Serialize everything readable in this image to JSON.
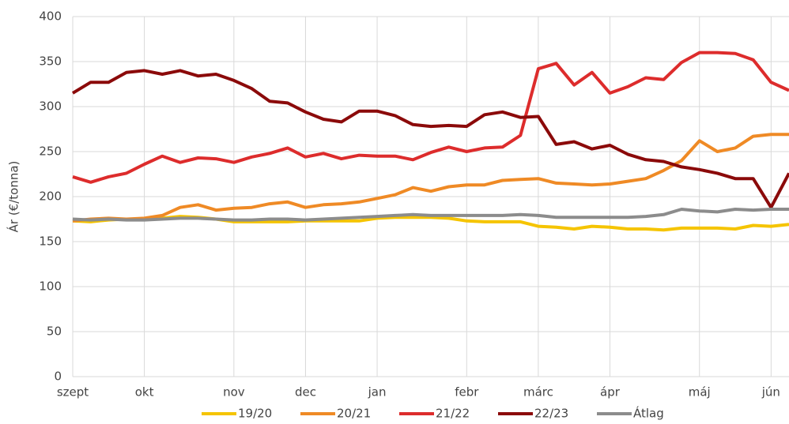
{
  "chart_data": {
    "type": "line",
    "y_label": "Ár (€/tonna)",
    "categories": [
      "szept",
      null,
      null,
      null,
      "okt",
      null,
      null,
      null,
      null,
      "nov",
      null,
      null,
      null,
      "dec",
      null,
      null,
      null,
      "jan",
      null,
      null,
      null,
      null,
      "febr",
      null,
      null,
      null,
      "márc",
      null,
      null,
      null,
      "ápr",
      null,
      null,
      null,
      null,
      "máj",
      null,
      null,
      null,
      "jún",
      null
    ],
    "series": [
      {
        "name": "19/20",
        "color": "#f5c400",
        "values": [
          173,
          172,
          174,
          175,
          175,
          176,
          178,
          177,
          175,
          172,
          172,
          172,
          172,
          173,
          173,
          173,
          173,
          176,
          177,
          177,
          177,
          176,
          173,
          172,
          172,
          172,
          167,
          166,
          164,
          167,
          166,
          164,
          164,
          163,
          165,
          165,
          165,
          164,
          168,
          167,
          169
        ]
      },
      {
        "name": "20/21",
        "color": "#ef8a25",
        "values": [
          173,
          175,
          176,
          175,
          176,
          179,
          188,
          191,
          185,
          187,
          188,
          192,
          194,
          188,
          191,
          192,
          194,
          198,
          202,
          210,
          206,
          211,
          213,
          213,
          218,
          219,
          220,
          215,
          214,
          213,
          214,
          217,
          220,
          229,
          240,
          262,
          250,
          254,
          267,
          269,
          269
        ]
      },
      {
        "name": "21/22",
        "color": "#dd2c2c",
        "values": [
          222,
          216,
          222,
          226,
          236,
          245,
          238,
          243,
          242,
          238,
          244,
          248,
          254,
          244,
          248,
          242,
          246,
          245,
          245,
          241,
          249,
          255,
          250,
          254,
          255,
          268,
          342,
          348,
          324,
          338,
          315,
          322,
          332,
          330,
          349,
          360,
          360,
          359,
          352,
          327,
          318
        ]
      },
      {
        "name": "22/23",
        "color": "#8b0a0a",
        "values": [
          315,
          327,
          327,
          338,
          340,
          336,
          340,
          334,
          336,
          329,
          320,
          306,
          304,
          294,
          286,
          283,
          295,
          295,
          290,
          280,
          278,
          279,
          278,
          291,
          294,
          288,
          289,
          258,
          261,
          253,
          257,
          247,
          241,
          239,
          233,
          230,
          226,
          220,
          220,
          188,
          226
        ]
      },
      {
        "name": "Átlag",
        "color": "#8c8c8c",
        "values": [
          175,
          174,
          175,
          174,
          174,
          175,
          176,
          176,
          175,
          174,
          174,
          175,
          175,
          174,
          175,
          176,
          177,
          178,
          179,
          180,
          179,
          179,
          179,
          179,
          179,
          180,
          179,
          177,
          177,
          177,
          177,
          177,
          178,
          180,
          186,
          184,
          183,
          186,
          185,
          186,
          186
        ]
      }
    ],
    "ylim": [
      0,
      400
    ],
    "yticks": [
      0,
      50,
      100,
      150,
      200,
      250,
      300,
      350,
      400
    ],
    "grid": true,
    "legend": "bottom"
  }
}
